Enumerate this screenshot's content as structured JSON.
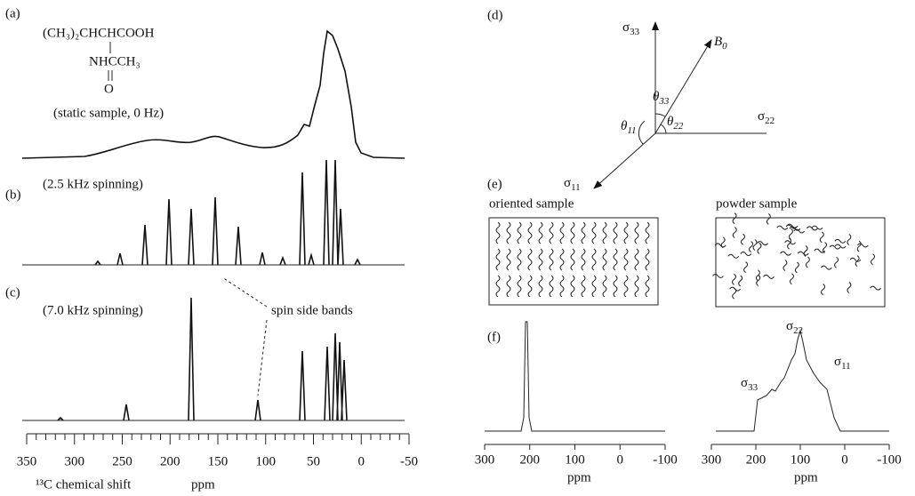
{
  "panels": {
    "a": "(a)",
    "b": "(b)",
    "c": "(c)",
    "d": "(d)",
    "e": "(e)",
    "f": "(f)"
  },
  "formula": {
    "line1": "(CH₃)₂CHCHCOOH",
    "line2": "NHCCH₃",
    "line3": "O"
  },
  "captions": {
    "a": "(static sample, 0 Hz)",
    "b": "(2.5 kHz spinning)",
    "c": "(7.0 kHz spinning)",
    "sidebands": "spin side bands"
  },
  "left_axis": {
    "ticks": [
      350,
      300,
      250,
      200,
      150,
      100,
      50,
      0,
      -50
    ],
    "label_nucleus": "¹³C chemical shift",
    "unit": "ppm"
  },
  "vectors": {
    "s33": {
      "symbol": "σ",
      "sub": "33"
    },
    "b0": {
      "symbol": "B",
      "sub": "0"
    },
    "s22": {
      "symbol": "σ",
      "sub": "22"
    },
    "s11": {
      "symbol": "σ",
      "sub": "11"
    },
    "t33": {
      "symbol": "θ",
      "sub": "33"
    },
    "t11": {
      "symbol": "θ",
      "sub": "11"
    },
    "t22": {
      "symbol": "θ",
      "sub": "22"
    }
  },
  "samples": {
    "oriented": "oriented sample",
    "powder": "powder sample"
  },
  "f_left_axis": {
    "ticks": [
      300,
      200,
      100,
      0,
      -100
    ],
    "unit": "ppm"
  },
  "f_right_axis": {
    "ticks": [
      300,
      200,
      100,
      0,
      -100
    ],
    "unit": "ppm"
  },
  "f_labels": {
    "s22": {
      "symbol": "σ",
      "sub": "22"
    },
    "s33": {
      "symbol": "σ",
      "sub": "33"
    },
    "s11": {
      "symbol": "σ",
      "sub": "11"
    }
  }
}
